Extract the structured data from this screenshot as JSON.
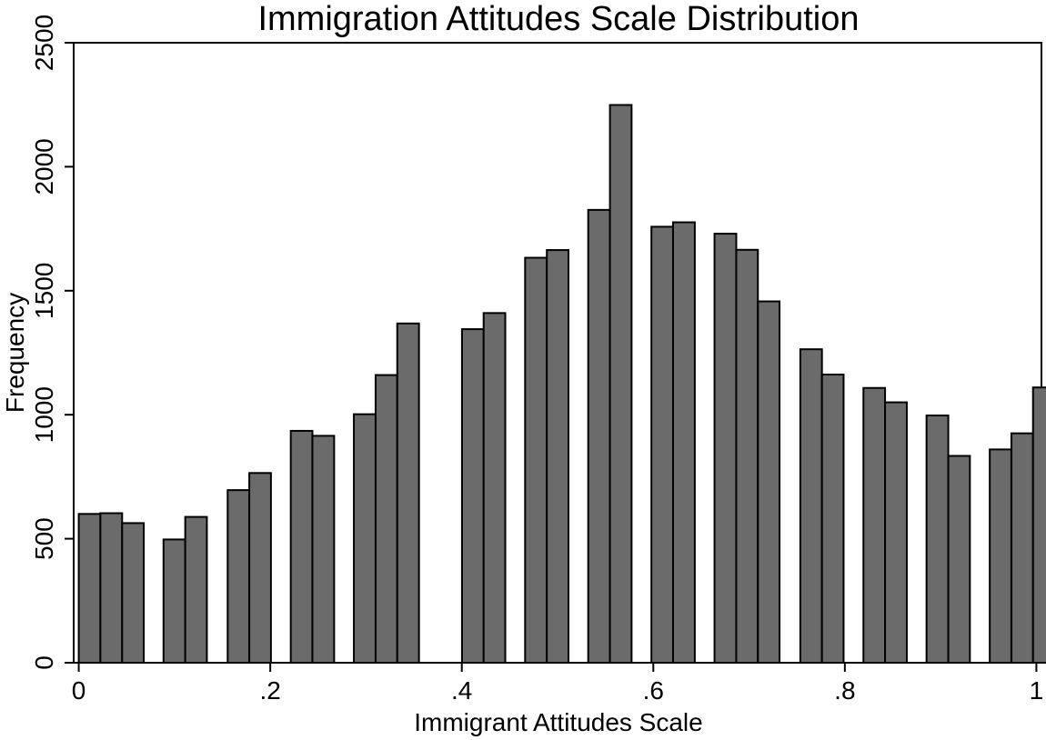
{
  "chart_data": {
    "type": "bar",
    "title": "Immigration Attitudes Scale Distribution",
    "xlabel": "Immigrant Attitudes Scale",
    "ylabel": "Frequency",
    "xlim": [
      -0.0053,
      1.0053
    ],
    "ylim": [
      0,
      2500
    ],
    "xticks": [
      0,
      0.2,
      0.4,
      0.6,
      0.8,
      1
    ],
    "xtick_labels": [
      "0",
      ".2",
      ".4",
      ".6",
      ".8",
      "1"
    ],
    "yticks": [
      0,
      500,
      1000,
      1500,
      2000,
      2500
    ],
    "ytick_labels": [
      "0",
      "500",
      "1000",
      "1500",
      "2000",
      "2500"
    ],
    "grid": false,
    "bar_color": "#6b6b6b",
    "bar_edge_color": "#000000",
    "bars": [
      {
        "x0": 0.0,
        "x1": 0.0226,
        "value": 600
      },
      {
        "x0": 0.0226,
        "x1": 0.0453,
        "value": 603
      },
      {
        "x0": 0.0453,
        "x1": 0.0679,
        "value": 563
      },
      {
        "x0": 0.0885,
        "x1": 0.1112,
        "value": 497
      },
      {
        "x0": 0.1112,
        "x1": 0.1338,
        "value": 588
      },
      {
        "x0": 0.1555,
        "x1": 0.1781,
        "value": 696
      },
      {
        "x0": 0.1781,
        "x1": 0.2007,
        "value": 765
      },
      {
        "x0": 0.2214,
        "x1": 0.244,
        "value": 935
      },
      {
        "x0": 0.244,
        "x1": 0.2667,
        "value": 915
      },
      {
        "x0": 0.2873,
        "x1": 0.31,
        "value": 1002
      },
      {
        "x0": 0.31,
        "x1": 0.3326,
        "value": 1160
      },
      {
        "x0": 0.3326,
        "x1": 0.3553,
        "value": 1368
      },
      {
        "x0": 0.4002,
        "x1": 0.4228,
        "value": 1345
      },
      {
        "x0": 0.4228,
        "x1": 0.4454,
        "value": 1410
      },
      {
        "x0": 0.4661,
        "x1": 0.4888,
        "value": 1633
      },
      {
        "x0": 0.4888,
        "x1": 0.5114,
        "value": 1664
      },
      {
        "x0": 0.532,
        "x1": 0.5547,
        "value": 1826
      },
      {
        "x0": 0.5547,
        "x1": 0.5773,
        "value": 2249
      },
      {
        "x0": 0.598,
        "x1": 0.6206,
        "value": 1758
      },
      {
        "x0": 0.6206,
        "x1": 0.6433,
        "value": 1776
      },
      {
        "x0": 0.6639,
        "x1": 0.6866,
        "value": 1730
      },
      {
        "x0": 0.6866,
        "x1": 0.7092,
        "value": 1665
      },
      {
        "x0": 0.7092,
        "x1": 0.7318,
        "value": 1457
      },
      {
        "x0": 0.7535,
        "x1": 0.7761,
        "value": 1264
      },
      {
        "x0": 0.7761,
        "x1": 0.7987,
        "value": 1162
      },
      {
        "x0": 0.8194,
        "x1": 0.842,
        "value": 1108
      },
      {
        "x0": 0.842,
        "x1": 0.8647,
        "value": 1050
      },
      {
        "x0": 0.8853,
        "x1": 0.908,
        "value": 997
      },
      {
        "x0": 0.908,
        "x1": 0.9306,
        "value": 834
      },
      {
        "x0": 0.9513,
        "x1": 0.9739,
        "value": 860
      },
      {
        "x0": 0.9739,
        "x1": 0.9965,
        "value": 925
      },
      {
        "x0": 0.9965,
        "x1": 1.0192,
        "value": 1110
      }
    ]
  }
}
